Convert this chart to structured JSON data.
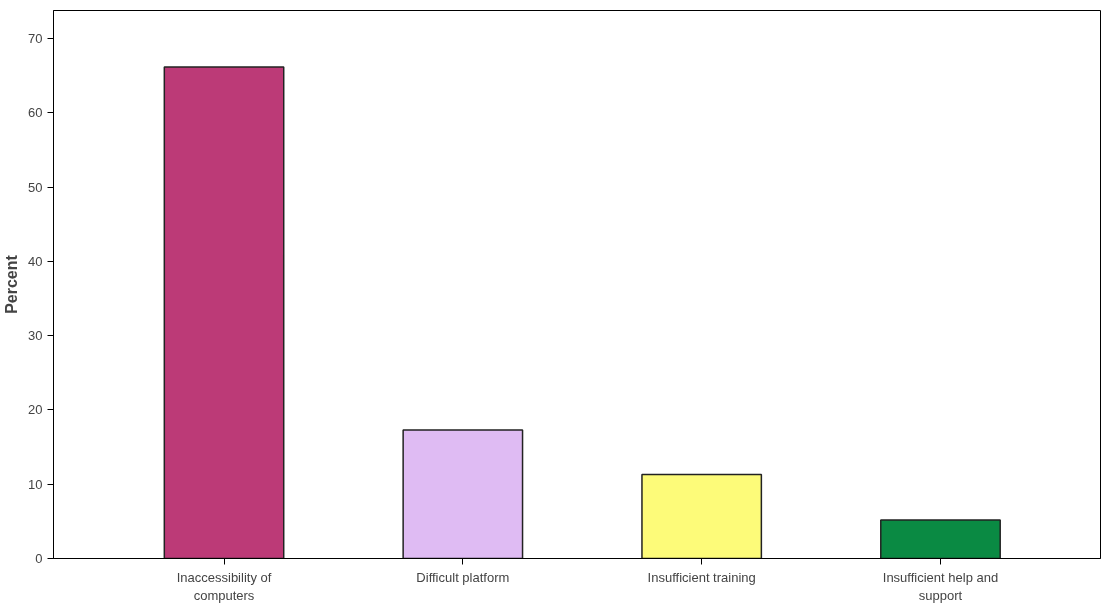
{
  "chart_data": {
    "type": "bar",
    "ylabel": "Percent",
    "categories": [
      "Inaccessibility of computers",
      "Difficult platform",
      "Insufficient training",
      "Insufficient help and support"
    ],
    "values": [
      66.2,
      17.3,
      11.3,
      5.2
    ],
    "colors": [
      "#bc3a77",
      "#dfbbf3",
      "#fdfb79",
      "#0a8a43"
    ],
    "ylim": [
      0,
      73.8
    ],
    "yticks": [
      0,
      10,
      20,
      30,
      40,
      50,
      60,
      70
    ],
    "grid": false
  }
}
